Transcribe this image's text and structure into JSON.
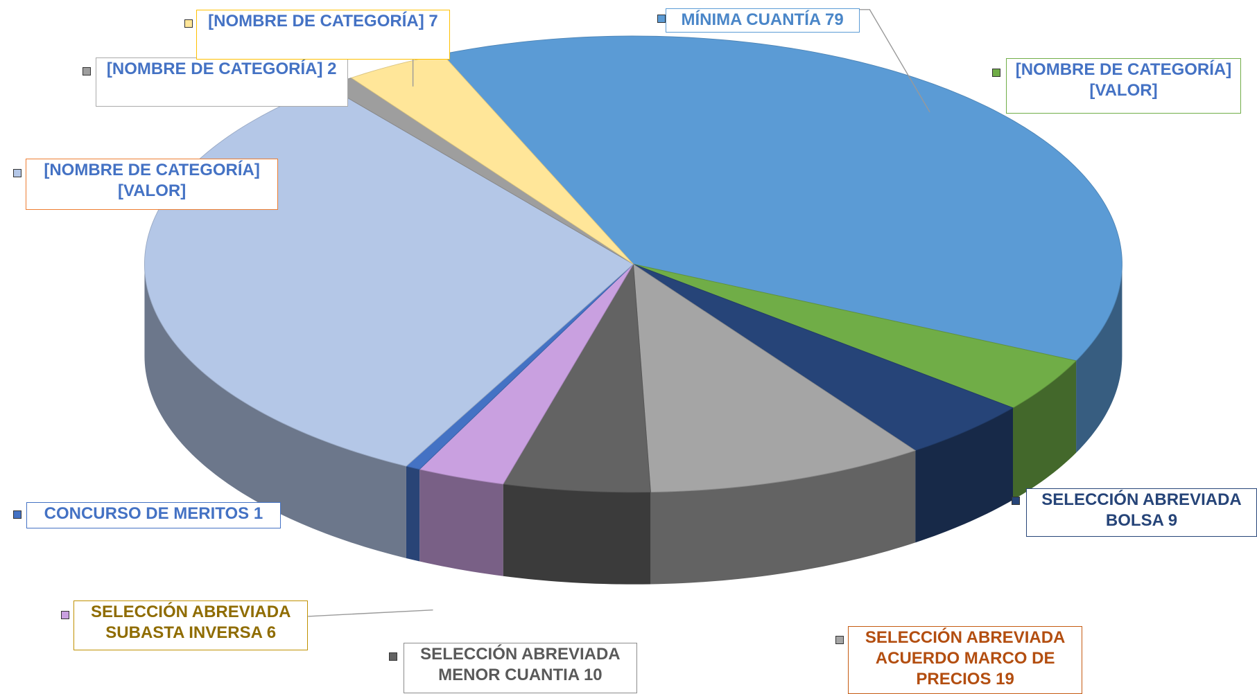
{
  "chart_data": {
    "type": "pie3d",
    "categories": [
      "MÍNIMA CUANTÍA",
      "[NOMBRE DE CATEGORÍA]",
      "SELECCIÓN ABREVIADA BOLSA",
      "SELECCIÓN ABREVIADA ACUERDO MARCO DE PRECIOS",
      "SELECCIÓN ABREVIADA MENOR CUANTIA",
      "SELECCIÓN ABREVIADA SUBASTA INVERSA",
      "CONCURSO DE MERITOS",
      "[NOMBRE DE CATEGORÍA]",
      "[NOMBRE DE CATEGORÍA]",
      "[NOMBRE DE CATEGORÍA]"
    ],
    "values": [
      79,
      8,
      9,
      19,
      10,
      6,
      1,
      65,
      2,
      7
    ],
    "value_labels": [
      "79",
      "[VALOR]",
      "9",
      "19",
      "10",
      "6",
      "1",
      "[VALOR]",
      "2",
      "7"
    ],
    "colors": [
      "#5b9bd5",
      "#70ad47",
      "#264478",
      "#a5a5a5",
      "#636363",
      "#c9a0e0",
      "#4472c4",
      "#b4c7e7",
      "#9e9e9e",
      "#ffe699"
    ]
  }
}
